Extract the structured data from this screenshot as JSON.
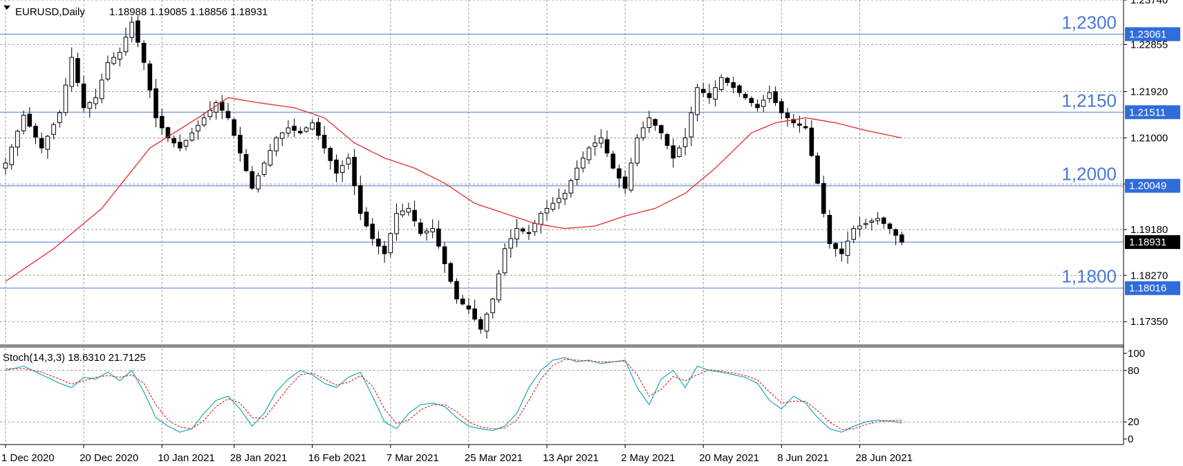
{
  "chart_data": {
    "type": "candlestick",
    "symbol": "EURUSD,Daily",
    "ohlc_text": "1.18988 1.19085 1.18856 1.18931",
    "price_ylim": [
      1.169,
      1.2374
    ],
    "price_ticks": [
      "1.23740",
      "1.22855",
      "1.21920",
      "1.21000",
      "1.20085",
      "1.19180",
      "1.18270",
      "1.17350"
    ],
    "date_labels": [
      {
        "index": 0,
        "label": "1 Dec 2020"
      },
      {
        "index": 13,
        "label": "20 Dec 2020"
      },
      {
        "index": 26,
        "label": "10 Jan 2021"
      },
      {
        "index": 38,
        "label": "28 Jan 2021"
      },
      {
        "index": 51,
        "label": "16 Feb 2021"
      },
      {
        "index": 64,
        "label": "7 Mar 2021"
      },
      {
        "index": 77,
        "label": "25 Mar 2021"
      },
      {
        "index": 90,
        "label": "13 Apr 2021"
      },
      {
        "index": 103,
        "label": "2 May 2021"
      },
      {
        "index": 116,
        "label": "20 May 2021"
      },
      {
        "index": 129,
        "label": "8 Jun 2021"
      },
      {
        "index": 142,
        "label": "28 Jun 2021"
      }
    ],
    "levels": [
      {
        "label": "1,2300",
        "tag": "1.23061",
        "price": 1.23061
      },
      {
        "label": "1,2150",
        "tag": "1.21511",
        "price": 1.21511
      },
      {
        "label": "1,2000",
        "tag": "1.20049",
        "price": 1.20049
      },
      {
        "label": "1,1800",
        "tag": "1.18016",
        "price": 1.18016
      }
    ],
    "current_price": {
      "tag": "1.18931",
      "price": 1.18931
    },
    "close_keypoints": [
      [
        0,
        1.205
      ],
      [
        3,
        1.2145
      ],
      [
        6,
        1.208
      ],
      [
        9,
        1.215
      ],
      [
        11,
        1.226
      ],
      [
        13,
        1.216
      ],
      [
        15,
        1.218
      ],
      [
        17,
        1.225
      ],
      [
        19,
        1.227
      ],
      [
        21,
        1.233
      ],
      [
        23,
        1.225
      ],
      [
        25,
        1.214
      ],
      [
        27,
        1.21
      ],
      [
        29,
        1.208
      ],
      [
        31,
        1.211
      ],
      [
        33,
        1.214
      ],
      [
        35,
        1.217
      ],
      [
        37,
        1.214
      ],
      [
        39,
        1.207
      ],
      [
        41,
        1.2
      ],
      [
        43,
        1.205
      ],
      [
        45,
        1.21
      ],
      [
        47,
        1.212
      ],
      [
        49,
        1.211
      ],
      [
        51,
        1.213
      ],
      [
        53,
        1.208
      ],
      [
        55,
        1.203
      ],
      [
        57,
        1.206
      ],
      [
        59,
        1.195
      ],
      [
        61,
        1.19
      ],
      [
        63,
        1.187
      ],
      [
        65,
        1.195
      ],
      [
        67,
        1.196
      ],
      [
        69,
        1.191
      ],
      [
        71,
        1.192
      ],
      [
        73,
        1.185
      ],
      [
        75,
        1.178
      ],
      [
        77,
        1.176
      ],
      [
        79,
        1.172
      ],
      [
        81,
        1.178
      ],
      [
        83,
        1.188
      ],
      [
        85,
        1.192
      ],
      [
        87,
        1.191
      ],
      [
        89,
        1.195
      ],
      [
        91,
        1.197
      ],
      [
        93,
        1.199
      ],
      [
        95,
        1.204
      ],
      [
        97,
        1.208
      ],
      [
        99,
        1.21
      ],
      [
        101,
        1.204
      ],
      [
        103,
        1.2
      ],
      [
        105,
        1.21
      ],
      [
        107,
        1.214
      ],
      [
        109,
        1.211
      ],
      [
        111,
        1.206
      ],
      [
        113,
        1.21
      ],
      [
        115,
        1.22
      ],
      [
        117,
        1.218
      ],
      [
        119,
        1.222
      ],
      [
        121,
        1.22
      ],
      [
        123,
        1.218
      ],
      [
        125,
        1.216
      ],
      [
        127,
        1.219
      ],
      [
        129,
        1.215
      ],
      [
        131,
        1.213
      ],
      [
        133,
        1.212
      ],
      [
        135,
        1.201
      ],
      [
        137,
        1.189
      ],
      [
        139,
        1.187
      ],
      [
        141,
        1.192
      ],
      [
        143,
        1.193
      ],
      [
        145,
        1.194
      ],
      [
        147,
        1.192
      ],
      [
        149,
        1.1893
      ]
    ],
    "ma_keypoints": [
      [
        0,
        1.1815
      ],
      [
        8,
        1.188
      ],
      [
        16,
        1.196
      ],
      [
        24,
        1.208
      ],
      [
        32,
        1.214
      ],
      [
        37,
        1.218
      ],
      [
        42,
        1.217
      ],
      [
        48,
        1.216
      ],
      [
        53,
        1.214
      ],
      [
        58,
        1.209
      ],
      [
        63,
        1.206
      ],
      [
        68,
        1.204
      ],
      [
        73,
        1.201
      ],
      [
        78,
        1.197
      ],
      [
        83,
        1.195
      ],
      [
        88,
        1.193
      ],
      [
        93,
        1.192
      ],
      [
        98,
        1.1925
      ],
      [
        103,
        1.1945
      ],
      [
        108,
        1.196
      ],
      [
        113,
        1.199
      ],
      [
        118,
        1.204
      ],
      [
        124,
        1.211
      ],
      [
        128,
        1.213
      ],
      [
        133,
        1.214
      ],
      [
        138,
        1.213
      ],
      [
        143,
        1.2115
      ],
      [
        149,
        1.21
      ]
    ],
    "stoch": {
      "label": "Stoch(14,3,3) 18.6310 21.7125",
      "ylim": [
        0,
        100
      ],
      "ticks": [
        "100",
        "80",
        "20",
        "0"
      ],
      "k_keypoints": [
        [
          0,
          80
        ],
        [
          3,
          85
        ],
        [
          6,
          75
        ],
        [
          9,
          65
        ],
        [
          11,
          60
        ],
        [
          13,
          72
        ],
        [
          15,
          70
        ],
        [
          17,
          78
        ],
        [
          19,
          68
        ],
        [
          21,
          80
        ],
        [
          23,
          55
        ],
        [
          25,
          25
        ],
        [
          27,
          15
        ],
        [
          29,
          8
        ],
        [
          31,
          12
        ],
        [
          33,
          30
        ],
        [
          35,
          45
        ],
        [
          37,
          50
        ],
        [
          39,
          35
        ],
        [
          41,
          15
        ],
        [
          43,
          30
        ],
        [
          45,
          55
        ],
        [
          47,
          70
        ],
        [
          49,
          80
        ],
        [
          51,
          75
        ],
        [
          53,
          65
        ],
        [
          55,
          60
        ],
        [
          57,
          72
        ],
        [
          59,
          78
        ],
        [
          61,
          50
        ],
        [
          63,
          20
        ],
        [
          65,
          12
        ],
        [
          67,
          30
        ],
        [
          69,
          40
        ],
        [
          71,
          42
        ],
        [
          73,
          38
        ],
        [
          75,
          25
        ],
        [
          77,
          15
        ],
        [
          79,
          12
        ],
        [
          81,
          10
        ],
        [
          83,
          15
        ],
        [
          85,
          30
        ],
        [
          87,
          60
        ],
        [
          89,
          80
        ],
        [
          91,
          92
        ],
        [
          93,
          95
        ],
        [
          95,
          90
        ],
        [
          97,
          92
        ],
        [
          99,
          88
        ],
        [
          101,
          90
        ],
        [
          103,
          92
        ],
        [
          105,
          60
        ],
        [
          107,
          40
        ],
        [
          109,
          70
        ],
        [
          111,
          80
        ],
        [
          113,
          60
        ],
        [
          115,
          85
        ],
        [
          117,
          80
        ],
        [
          119,
          78
        ],
        [
          121,
          75
        ],
        [
          123,
          72
        ],
        [
          125,
          65
        ],
        [
          127,
          45
        ],
        [
          129,
          35
        ],
        [
          131,
          50
        ],
        [
          133,
          42
        ],
        [
          135,
          25
        ],
        [
          137,
          12
        ],
        [
          139,
          8
        ],
        [
          141,
          15
        ],
        [
          143,
          20
        ],
        [
          145,
          22
        ],
        [
          147,
          21
        ],
        [
          149,
          18.6
        ]
      ],
      "d_keypoints": [
        [
          0,
          82
        ],
        [
          3,
          82
        ],
        [
          6,
          78
        ],
        [
          9,
          70
        ],
        [
          11,
          64
        ],
        [
          13,
          68
        ],
        [
          15,
          72
        ],
        [
          17,
          74
        ],
        [
          19,
          72
        ],
        [
          21,
          75
        ],
        [
          23,
          65
        ],
        [
          25,
          40
        ],
        [
          27,
          22
        ],
        [
          29,
          14
        ],
        [
          31,
          12
        ],
        [
          33,
          22
        ],
        [
          35,
          38
        ],
        [
          37,
          47
        ],
        [
          39,
          42
        ],
        [
          41,
          25
        ],
        [
          43,
          24
        ],
        [
          45,
          42
        ],
        [
          47,
          60
        ],
        [
          49,
          75
        ],
        [
          51,
          77
        ],
        [
          53,
          70
        ],
        [
          55,
          63
        ],
        [
          57,
          66
        ],
        [
          59,
          74
        ],
        [
          61,
          62
        ],
        [
          63,
          35
        ],
        [
          65,
          18
        ],
        [
          67,
          22
        ],
        [
          69,
          34
        ],
        [
          71,
          40
        ],
        [
          73,
          40
        ],
        [
          75,
          32
        ],
        [
          77,
          20
        ],
        [
          79,
          14
        ],
        [
          81,
          12
        ],
        [
          83,
          13
        ],
        [
          85,
          22
        ],
        [
          87,
          45
        ],
        [
          89,
          70
        ],
        [
          91,
          86
        ],
        [
          93,
          93
        ],
        [
          95,
          92
        ],
        [
          97,
          91
        ],
        [
          99,
          90
        ],
        [
          101,
          90
        ],
        [
          103,
          91
        ],
        [
          105,
          75
        ],
        [
          107,
          50
        ],
        [
          109,
          58
        ],
        [
          111,
          73
        ],
        [
          113,
          68
        ],
        [
          115,
          75
        ],
        [
          117,
          81
        ],
        [
          119,
          79
        ],
        [
          121,
          77
        ],
        [
          123,
          74
        ],
        [
          125,
          69
        ],
        [
          127,
          55
        ],
        [
          129,
          42
        ],
        [
          131,
          44
        ],
        [
          133,
          44
        ],
        [
          135,
          33
        ],
        [
          137,
          20
        ],
        [
          139,
          11
        ],
        [
          141,
          12
        ],
        [
          143,
          17
        ],
        [
          145,
          20
        ],
        [
          147,
          21.5
        ],
        [
          149,
          21.7
        ]
      ]
    },
    "colors": {
      "grid": "#9a9a9a",
      "ma": "#e22b2b",
      "level_line": "#4a78d6",
      "level_tag": "#2f6cdc",
      "current_tag": "#000000",
      "stoch_k": "#1aa8b8",
      "stoch_d": "#e22b2b"
    }
  }
}
